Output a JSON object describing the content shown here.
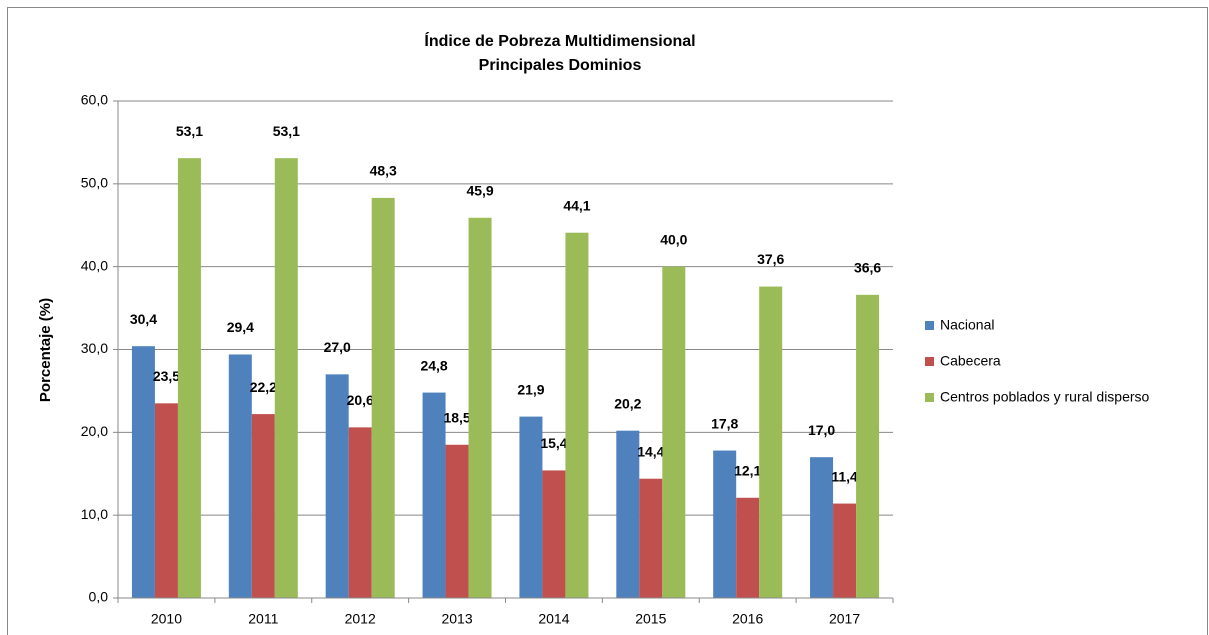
{
  "chart_data": {
    "type": "bar",
    "title": "Índice de Pobreza Multidimensional",
    "subtitle": "Principales Dominios",
    "y_label": "Porcentaje  (%)",
    "categories": [
      "2010",
      "2011",
      "2012",
      "2013",
      "2014",
      "2015",
      "2016",
      "2017"
    ],
    "series": [
      {
        "name": "Nacional",
        "color": "#4f81bd",
        "values": [
          30.4,
          29.4,
          27.0,
          24.8,
          21.9,
          20.2,
          17.8,
          17.0
        ],
        "value_labels": [
          "30,4",
          "29,4",
          "27,0",
          "24,8",
          "21,9",
          "20,2",
          "17,8",
          "17,0"
        ]
      },
      {
        "name": "Cabecera",
        "color": "#c0504d",
        "values": [
          23.5,
          22.2,
          20.6,
          18.5,
          15.4,
          14.4,
          12.1,
          11.4
        ],
        "value_labels": [
          "23,5",
          "22,2",
          "20,6",
          "18,5",
          "15,4",
          "14,4",
          "12,1",
          "11,4"
        ]
      },
      {
        "name": "Centros poblados y rural disperso",
        "color": "#9bbb59",
        "values": [
          53.1,
          53.1,
          48.3,
          45.9,
          44.1,
          40.0,
          37.6,
          36.6
        ],
        "value_labels": [
          "53,1",
          "53,1",
          "48,3",
          "45,9",
          "44,1",
          "40,0",
          "37,6",
          "36,6"
        ]
      }
    ],
    "ylim": [
      0,
      60
    ],
    "yticks": [
      {
        "value": 0,
        "label": "0,0"
      },
      {
        "value": 10,
        "label": "10,0"
      },
      {
        "value": 20,
        "label": "20,0"
      },
      {
        "value": 30,
        "label": "30,0"
      },
      {
        "value": 40,
        "label": "40,0"
      },
      {
        "value": 50,
        "label": "50,0"
      },
      {
        "value": 60,
        "label": "60,0"
      }
    ],
    "grid": true,
    "legend": "right"
  }
}
